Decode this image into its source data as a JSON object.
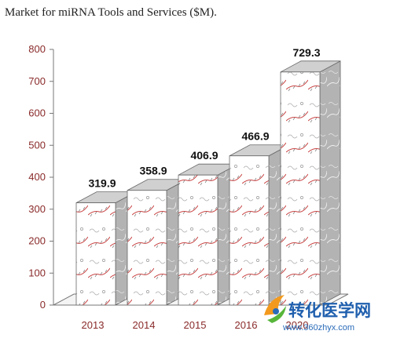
{
  "chart_data": {
    "type": "bar",
    "title": "Market for miRNA Tools and Services ($M).",
    "categories": [
      "2013",
      "2014",
      "2015",
      "2016",
      "2020"
    ],
    "values": [
      319.9,
      358.9,
      406.9,
      466.9,
      729.3
    ],
    "data_labels": [
      "319.9",
      "358.9",
      "406.9",
      "466.9",
      "729.3"
    ],
    "xlabel": "",
    "ylabel": "",
    "ylim": [
      0,
      800
    ],
    "yticks": [
      "0",
      "100",
      "200",
      "300",
      "400",
      "500",
      "600",
      "700",
      "800"
    ],
    "grid": false,
    "legend": "none",
    "style": "3d-column",
    "colors": {
      "front": "#ffffff",
      "side": "#b5b5b5",
      "top": "#d0d0d0",
      "pattern_line": "#c23a3a",
      "axis": "#777777",
      "tick_text": "#8a2a2a"
    }
  },
  "watermark": {
    "text": "转化医学网",
    "url": "www.360zhyx.com"
  }
}
